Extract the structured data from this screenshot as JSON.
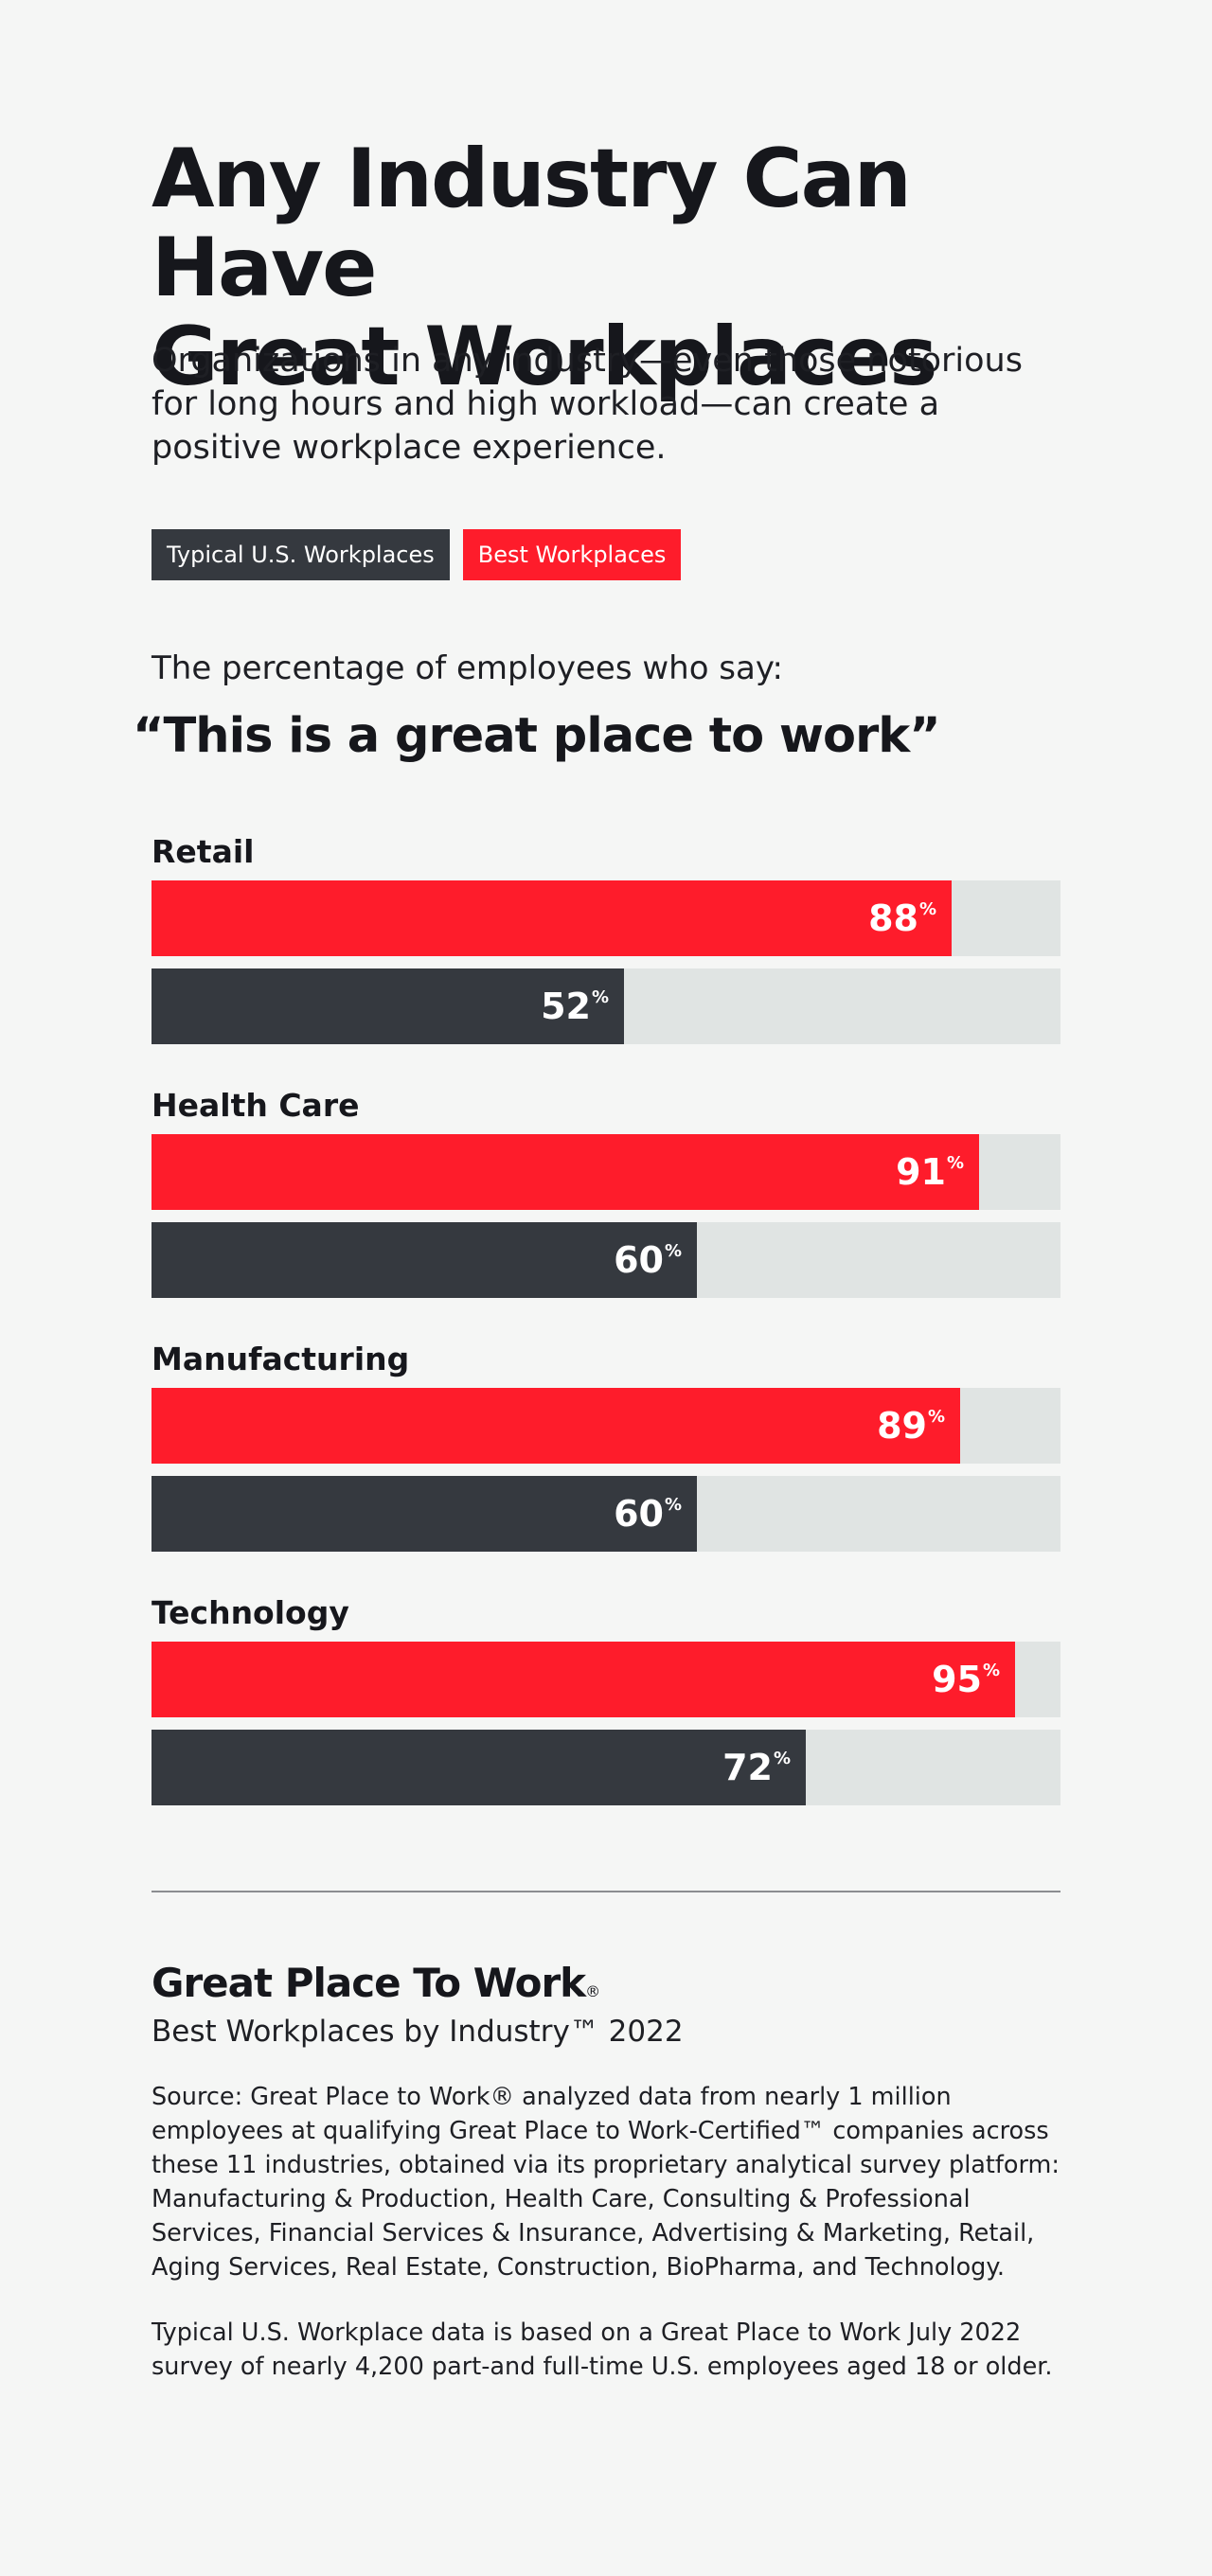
{
  "header": {
    "title_line1": "Any Industry Can Have",
    "title_line2": "Great Workplaces",
    "subtitle": "Organizations in any industry—even those notorious for long hours and high workload—can create a positive workplace experience."
  },
  "legend": {
    "typical": "Typical U.S. Workplaces",
    "best": "Best Workplaces"
  },
  "lead": "The percentage of employees who say:",
  "quote": "“This is a great place to work”",
  "chart_data": {
    "type": "bar",
    "orientation": "horizontal",
    "categories": [
      "Retail",
      "Health Care",
      "Manufacturing",
      "Technology"
    ],
    "series": [
      {
        "name": "Best Workplaces",
        "values": [
          88,
          91,
          89,
          95
        ]
      },
      {
        "name": "Typical U.S. Workplaces",
        "values": [
          52,
          60,
          60,
          72
        ]
      }
    ],
    "value_suffix": "%",
    "xlim": [
      0,
      100
    ],
    "grid": false,
    "legend_position": "top-left",
    "colors": {
      "best": "#fe1c2b",
      "typical": "#35393f",
      "track": "#e0e4e3"
    }
  },
  "footer": {
    "brand": "Great Place To Work",
    "brand_mark": "®",
    "report": "Best Workplaces by Industry™ 2022",
    "source": "Source: Great Place to Work® analyzed data from nearly 1 million employees at qualifying Great Place to Work-Certified™ companies across these 11 industries, obtained via its proprietary analytical survey platform: Manufacturing & Production, Health Care, Consulting & Professional Services, Financial Services & Insurance, Advertising & Marketing, Retail, Aging Services, Real Estate, Construction, BioPharma, and Technology.",
    "note": "Typical U.S. Workplace data is based on a Great Place to Work July 2022 survey of nearly 4,200 part-and full-time U.S. employees aged 18 or older."
  }
}
